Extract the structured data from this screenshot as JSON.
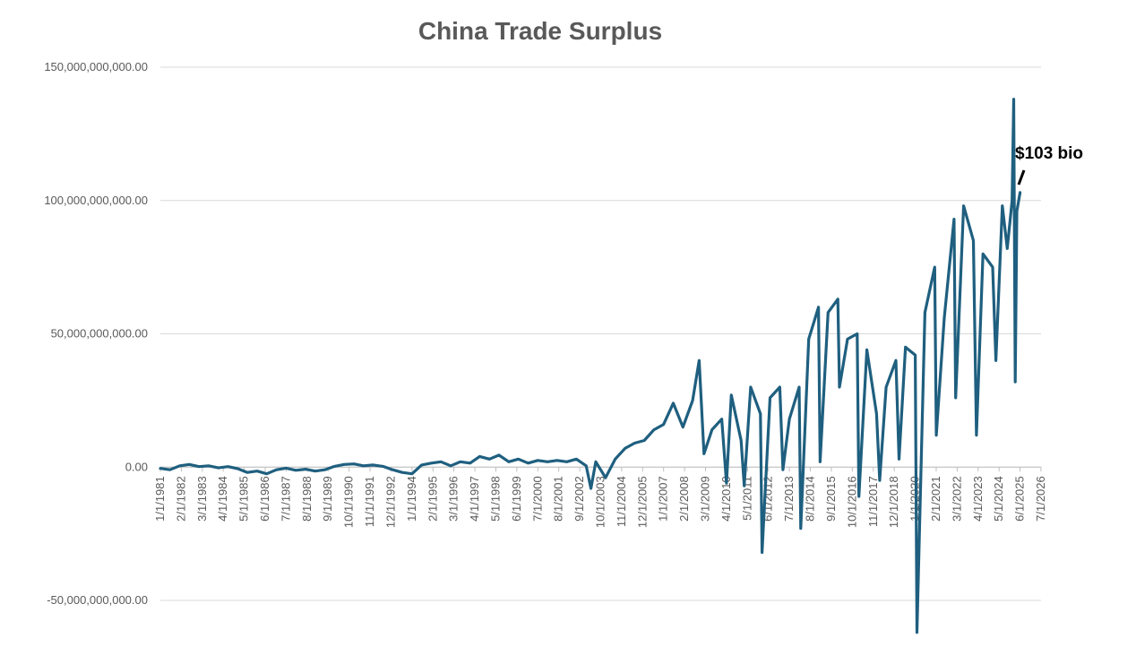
{
  "chart_data": {
    "type": "line",
    "title": "China Trade Surplus",
    "xlabel": "",
    "ylabel": "",
    "ylim": [
      -50000000000,
      150000000000
    ],
    "xlim": [
      "1981-01-01",
      "2026-07-01"
    ],
    "y_ticks": [
      {
        "value": 150000000000,
        "label": "150,000,000,000.00"
      },
      {
        "value": 100000000000,
        "label": "100,000,000,000.00"
      },
      {
        "value": 50000000000,
        "label": "50,000,000,000.00"
      },
      {
        "value": 0,
        "label": "0.00"
      },
      {
        "value": -50000000000,
        "label": "-50,000,000,000.00"
      }
    ],
    "x_ticks": [
      "1/1/1981",
      "2/1/1982",
      "3/1/1983",
      "4/1/1984",
      "5/1/1985",
      "6/1/1986",
      "7/1/1987",
      "8/1/1988",
      "9/1/1989",
      "10/1/1990",
      "11/1/1991",
      "12/1/1992",
      "1/1/1994",
      "2/1/1995",
      "3/1/1996",
      "4/1/1997",
      "5/1/1998",
      "6/1/1999",
      "7/1/2000",
      "8/1/2001",
      "9/1/2002",
      "10/1/2003",
      "11/1/2004",
      "12/1/2005",
      "1/1/2007",
      "2/1/2008",
      "3/1/2009",
      "4/1/2010",
      "5/1/2011",
      "6/1/2012",
      "7/1/2013",
      "8/1/2014",
      "9/1/2015",
      "10/1/2016",
      "11/1/2017",
      "12/1/2018",
      "1/1/2020",
      "2/1/2021",
      "3/1/2022",
      "4/1/2023",
      "5/1/2024",
      "6/1/2025",
      "7/1/2026"
    ],
    "grid": "horizontal",
    "legend": "none",
    "series": [
      {
        "color": "#1f5f7f",
        "points": [
          [
            "1981-01-01",
            -0.5
          ],
          [
            "1981-07-01",
            -1.0
          ],
          [
            "1982-01-01",
            0.5
          ],
          [
            "1982-07-01",
            1.0
          ],
          [
            "1983-01-01",
            0.2
          ],
          [
            "1983-07-01",
            0.5
          ],
          [
            "1984-01-01",
            -0.3
          ],
          [
            "1984-07-01",
            0.2
          ],
          [
            "1985-01-01",
            -0.6
          ],
          [
            "1985-07-01",
            -2.0
          ],
          [
            "1986-01-01",
            -1.5
          ],
          [
            "1986-07-01",
            -2.5
          ],
          [
            "1987-01-01",
            -1.0
          ],
          [
            "1987-07-01",
            -0.4
          ],
          [
            "1988-01-01",
            -1.2
          ],
          [
            "1988-07-01",
            -0.8
          ],
          [
            "1989-01-01",
            -1.5
          ],
          [
            "1989-07-01",
            -1.0
          ],
          [
            "1990-01-01",
            0.3
          ],
          [
            "1990-07-01",
            1.0
          ],
          [
            "1991-01-01",
            1.2
          ],
          [
            "1991-07-01",
            0.5
          ],
          [
            "1992-01-01",
            0.8
          ],
          [
            "1992-07-01",
            0.3
          ],
          [
            "1993-01-01",
            -1.0
          ],
          [
            "1993-07-01",
            -2.0
          ],
          [
            "1994-01-01",
            -2.5
          ],
          [
            "1994-07-01",
            0.8
          ],
          [
            "1995-01-01",
            1.5
          ],
          [
            "1995-07-01",
            2.0
          ],
          [
            "1996-01-01",
            0.5
          ],
          [
            "1996-07-01",
            2.0
          ],
          [
            "1997-01-01",
            1.5
          ],
          [
            "1997-07-01",
            4.0
          ],
          [
            "1998-01-01",
            3.0
          ],
          [
            "1998-07-01",
            4.5
          ],
          [
            "1999-01-01",
            2.0
          ],
          [
            "1999-07-01",
            3.0
          ],
          [
            "2000-01-01",
            1.5
          ],
          [
            "2000-07-01",
            2.5
          ],
          [
            "2001-01-01",
            2.0
          ],
          [
            "2001-07-01",
            2.5
          ],
          [
            "2002-01-01",
            2.0
          ],
          [
            "2002-07-01",
            3.0
          ],
          [
            "2003-01-01",
            0.5
          ],
          [
            "2003-04-01",
            -8.0
          ],
          [
            "2003-07-01",
            2.0
          ],
          [
            "2004-01-01",
            -4.0
          ],
          [
            "2004-07-01",
            3.0
          ],
          [
            "2005-01-01",
            7.0
          ],
          [
            "2005-07-01",
            9.0
          ],
          [
            "2006-01-01",
            10.0
          ],
          [
            "2006-07-01",
            14.0
          ],
          [
            "2007-01-01",
            16.0
          ],
          [
            "2007-07-01",
            24.0
          ],
          [
            "2008-01-01",
            15.0
          ],
          [
            "2008-07-01",
            25.0
          ],
          [
            "2008-11-01",
            40.0
          ],
          [
            "2009-02-01",
            5.0
          ],
          [
            "2009-07-01",
            14.0
          ],
          [
            "2010-01-01",
            18.0
          ],
          [
            "2010-04-01",
            -6.0
          ],
          [
            "2010-07-01",
            27.0
          ],
          [
            "2011-01-01",
            10.0
          ],
          [
            "2011-03-01",
            -7.0
          ],
          [
            "2011-07-01",
            30.0
          ],
          [
            "2012-01-01",
            20.0
          ],
          [
            "2012-02-01",
            -32.0
          ],
          [
            "2012-07-01",
            26.0
          ],
          [
            "2013-01-01",
            30.0
          ],
          [
            "2013-03-01",
            -1.0
          ],
          [
            "2013-07-01",
            18.0
          ],
          [
            "2014-01-01",
            30.0
          ],
          [
            "2014-02-01",
            -23.0
          ],
          [
            "2014-07-01",
            48.0
          ],
          [
            "2015-01-01",
            60.0
          ],
          [
            "2015-02-01",
            2.0
          ],
          [
            "2015-07-01",
            58.0
          ],
          [
            "2016-01-01",
            63.0
          ],
          [
            "2016-02-01",
            30.0
          ],
          [
            "2016-07-01",
            48.0
          ],
          [
            "2017-01-01",
            50.0
          ],
          [
            "2017-02-01",
            -11.0
          ],
          [
            "2017-07-01",
            44.0
          ],
          [
            "2018-01-01",
            20.0
          ],
          [
            "2018-03-01",
            -5.0
          ],
          [
            "2018-07-01",
            30.0
          ],
          [
            "2019-01-01",
            40.0
          ],
          [
            "2019-03-01",
            3.0
          ],
          [
            "2019-07-01",
            45.0
          ],
          [
            "2020-01-01",
            42.0
          ],
          [
            "2020-02-01",
            -62.0
          ],
          [
            "2020-07-01",
            58.0
          ],
          [
            "2021-01-01",
            75.0
          ],
          [
            "2021-02-01",
            12.0
          ],
          [
            "2021-07-01",
            56.0
          ],
          [
            "2022-01-01",
            93.0
          ],
          [
            "2022-02-01",
            26.0
          ],
          [
            "2022-07-01",
            98.0
          ],
          [
            "2023-01-01",
            85.0
          ],
          [
            "2023-03-01",
            12.0
          ],
          [
            "2023-07-01",
            80.0
          ],
          [
            "2024-01-01",
            75.0
          ],
          [
            "2024-03-01",
            40.0
          ],
          [
            "2024-07-01",
            98.0
          ],
          [
            "2024-10-01",
            82.0
          ],
          [
            "2025-01-01",
            100.0
          ],
          [
            "2025-02-01",
            138.0
          ],
          [
            "2025-03-01",
            32.0
          ],
          [
            "2025-04-01",
            96.0
          ],
          [
            "2025-06-01",
            103.0
          ]
        ]
      }
    ],
    "annotation": {
      "text": "$103 bio"
    }
  }
}
